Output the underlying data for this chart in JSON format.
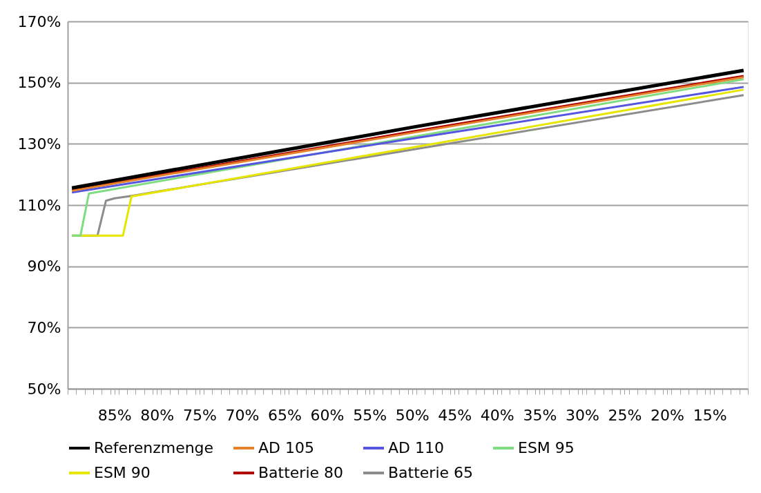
{
  "chart_data": {
    "type": "line",
    "xlim": [
      90.5,
      10.5
    ],
    "xticks": [
      {
        "value": 90.5,
        "label": null
      },
      {
        "value": 89.5,
        "label": null
      },
      {
        "value": 88.5,
        "label": null
      },
      {
        "value": 87.5,
        "label": null
      },
      {
        "value": 86.5,
        "label": null
      },
      {
        "value": 85.5,
        "label": null
      },
      {
        "value": 84.5,
        "label": null
      },
      {
        "value": 83.5,
        "label": null
      },
      {
        "value": 82.5,
        "label": null
      },
      {
        "value": 81.5,
        "label": null
      },
      {
        "value": 80.5,
        "label": null
      },
      {
        "value": 79.5,
        "label": null
      },
      {
        "value": 78.5,
        "label": null
      },
      {
        "value": 77.5,
        "label": null
      },
      {
        "value": 76.5,
        "label": null
      },
      {
        "value": 75.5,
        "label": null
      },
      {
        "value": 74.5,
        "label": null
      },
      {
        "value": 73.5,
        "label": null
      },
      {
        "value": 72.5,
        "label": null
      },
      {
        "value": 71.5,
        "label": null
      },
      {
        "value": 70.5,
        "label": null
      },
      {
        "value": 69.5,
        "label": null
      },
      {
        "value": 68.5,
        "label": null
      },
      {
        "value": 67.5,
        "label": null
      },
      {
        "value": 66.5,
        "label": null
      },
      {
        "value": 65.5,
        "label": null
      },
      {
        "value": 64.5,
        "label": null
      },
      {
        "value": 63.5,
        "label": null
      },
      {
        "value": 62.5,
        "label": null
      },
      {
        "value": 61.5,
        "label": null
      },
      {
        "value": 60.5,
        "label": null
      },
      {
        "value": 59.5,
        "label": null
      },
      {
        "value": 58.5,
        "label": null
      },
      {
        "value": 57.5,
        "label": null
      },
      {
        "value": 56.5,
        "label": null
      },
      {
        "value": 55.5,
        "label": null
      },
      {
        "value": 54.5,
        "label": null
      },
      {
        "value": 53.5,
        "label": null
      },
      {
        "value": 52.5,
        "label": null
      },
      {
        "value": 51.5,
        "label": null
      },
      {
        "value": 50.5,
        "label": null
      },
      {
        "value": 49.5,
        "label": null
      },
      {
        "value": 48.5,
        "label": null
      },
      {
        "value": 47.5,
        "label": null
      },
      {
        "value": 46.5,
        "label": null
      },
      {
        "value": 45.5,
        "label": null
      },
      {
        "value": 44.5,
        "label": null
      },
      {
        "value": 43.5,
        "label": null
      },
      {
        "value": 42.5,
        "label": null
      },
      {
        "value": 41.5,
        "label": null
      },
      {
        "value": 40.5,
        "label": null
      },
      {
        "value": 39.5,
        "label": null
      },
      {
        "value": 38.5,
        "label": null
      },
      {
        "value": 37.5,
        "label": null
      },
      {
        "value": 36.5,
        "label": null
      },
      {
        "value": 35.5,
        "label": null
      },
      {
        "value": 34.5,
        "label": null
      },
      {
        "value": 33.5,
        "label": null
      },
      {
        "value": 32.5,
        "label": null
      },
      {
        "value": 31.5,
        "label": null
      },
      {
        "value": 30.5,
        "label": null
      },
      {
        "value": 29.5,
        "label": null
      },
      {
        "value": 28.5,
        "label": null
      },
      {
        "value": 27.5,
        "label": null
      },
      {
        "value": 26.5,
        "label": null
      },
      {
        "value": 25.5,
        "label": null
      },
      {
        "value": 24.5,
        "label": null
      },
      {
        "value": 23.5,
        "label": null
      },
      {
        "value": 22.5,
        "label": null
      },
      {
        "value": 21.5,
        "label": null
      },
      {
        "value": 20.5,
        "label": null
      },
      {
        "value": 19.5,
        "label": null
      },
      {
        "value": 18.5,
        "label": null
      },
      {
        "value": 17.5,
        "label": null
      },
      {
        "value": 16.5,
        "label": null
      },
      {
        "value": 15.5,
        "label": null
      },
      {
        "value": 14.5,
        "label": null
      },
      {
        "value": 13.5,
        "label": null
      },
      {
        "value": 12.5,
        "label": null
      },
      {
        "value": 11.5,
        "label": null
      },
      {
        "value": 10.5,
        "label": null
      },
      {
        "value": 85,
        "label": "85%"
      },
      {
        "value": 80,
        "label": "80%"
      },
      {
        "value": 75,
        "label": "75%"
      },
      {
        "value": 70,
        "label": "70%"
      },
      {
        "value": 65,
        "label": "65%"
      },
      {
        "value": 60,
        "label": "60%"
      },
      {
        "value": 55,
        "label": "55%"
      },
      {
        "value": 50,
        "label": "50%"
      },
      {
        "value": 45,
        "label": "45%"
      },
      {
        "value": 40,
        "label": "40%"
      },
      {
        "value": 35,
        "label": "35%"
      },
      {
        "value": 30,
        "label": "30%"
      },
      {
        "value": 25,
        "label": "25%"
      },
      {
        "value": 20,
        "label": "20%"
      },
      {
        "value": 15,
        "label": "15%"
      }
    ],
    "ylim": [
      50,
      170
    ],
    "yticks": [
      {
        "value": 50,
        "label": "50%"
      },
      {
        "value": 70,
        "label": "70%"
      },
      {
        "value": 90,
        "label": "90%"
      },
      {
        "value": 110,
        "label": "110%"
      },
      {
        "value": 130,
        "label": "130%"
      },
      {
        "value": 150,
        "label": "150%"
      },
      {
        "value": 170,
        "label": "170%"
      }
    ],
    "grid": "y",
    "legend": "bottom",
    "marker": "none",
    "line_style": "solid",
    "series": [
      {
        "name": "Referenzmenge",
        "color": "#000000",
        "x": [
          90,
          50,
          11
        ],
        "values": [
          115.6,
          135.4,
          154.0
        ]
      },
      {
        "name": "AD 105",
        "color": "#e4812b",
        "x": [
          90,
          50,
          11
        ],
        "values": [
          114.7,
          133.6,
          151.8
        ]
      },
      {
        "name": "AD 110",
        "color": "#5555e0",
        "x": [
          90,
          50,
          11
        ],
        "values": [
          114.1,
          131.7,
          148.6
        ]
      },
      {
        "name": "ESM 95",
        "color": "#80dc80",
        "x": [
          90,
          89,
          88,
          50,
          11
        ],
        "values": [
          100,
          100,
          113.8,
          132.2,
          151.1
        ]
      },
      {
        "name": "ESM 90",
        "color": "#e6e600",
        "x": [
          90,
          84,
          83,
          50,
          11
        ],
        "values": [
          100,
          100,
          112.8,
          128.8,
          147.7
        ]
      },
      {
        "name": "Batterie 80",
        "color": "#b00000",
        "x": [
          90,
          50,
          11
        ],
        "values": [
          115.0,
          134.0,
          152.2
        ]
      },
      {
        "name": "Batterie 65",
        "color": "#8c8c8c",
        "x": [
          90,
          87,
          86,
          85,
          83,
          50,
          11
        ],
        "values": [
          100,
          100,
          111.4,
          112.2,
          113.0,
          128.1,
          145.9
        ]
      }
    ]
  }
}
